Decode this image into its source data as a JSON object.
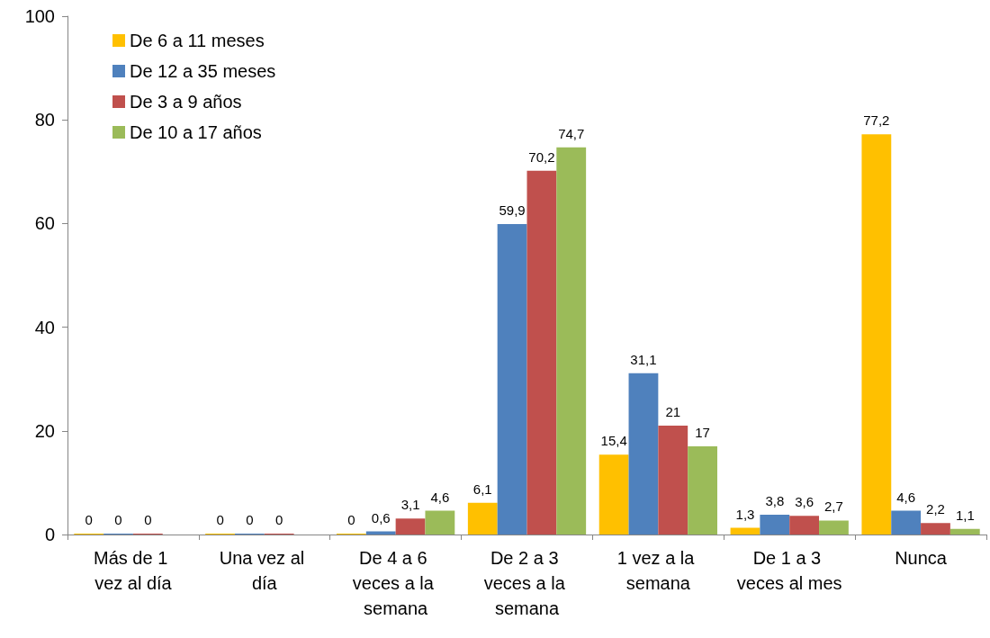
{
  "chart_data": {
    "type": "bar",
    "categories": [
      "Más de 1 vez al día",
      "Una vez al día",
      "De 4 a 6 veces a la semana",
      "De 2 a 3 veces a la semana",
      "1 vez a la semana",
      "De 1 a 3 veces al mes",
      "Nunca"
    ],
    "series": [
      {
        "name": "De 6 a 11 meses",
        "color": "#ffc000",
        "values": [
          0,
          0,
          0,
          6.1,
          15.4,
          1.3,
          77.2
        ],
        "value_labels": [
          "0",
          "0",
          "0",
          "6,1",
          "15,4",
          "1,3",
          "77,2"
        ]
      },
      {
        "name": "De 12 a 35 meses",
        "color": "#4f81bd",
        "values": [
          0,
          0,
          0.6,
          59.9,
          31.1,
          3.8,
          4.6
        ],
        "value_labels": [
          "0",
          "0",
          "0,6",
          "59,9",
          "31,1",
          "3,8",
          "4,6"
        ]
      },
      {
        "name": "De 3 a 9 años",
        "color": "#c0504d",
        "values": [
          0,
          0,
          3.1,
          70.2,
          21,
          3.6,
          2.2
        ],
        "value_labels": [
          "0",
          "0",
          "3,1",
          "70,2",
          "21",
          "3,6",
          "2,2"
        ]
      },
      {
        "name": "De 10 a 17 años",
        "color": "#9bbb59",
        "values": [
          null,
          null,
          4.6,
          74.7,
          17,
          2.7,
          1.1
        ],
        "value_labels": [
          null,
          null,
          "4,6",
          "74,7",
          "17",
          "2,7",
          "1,1"
        ]
      }
    ],
    "ylim": [
      0,
      100
    ],
    "yticks": [
      0,
      20,
      40,
      60,
      80,
      100
    ],
    "grid": false,
    "legend": "top left"
  }
}
